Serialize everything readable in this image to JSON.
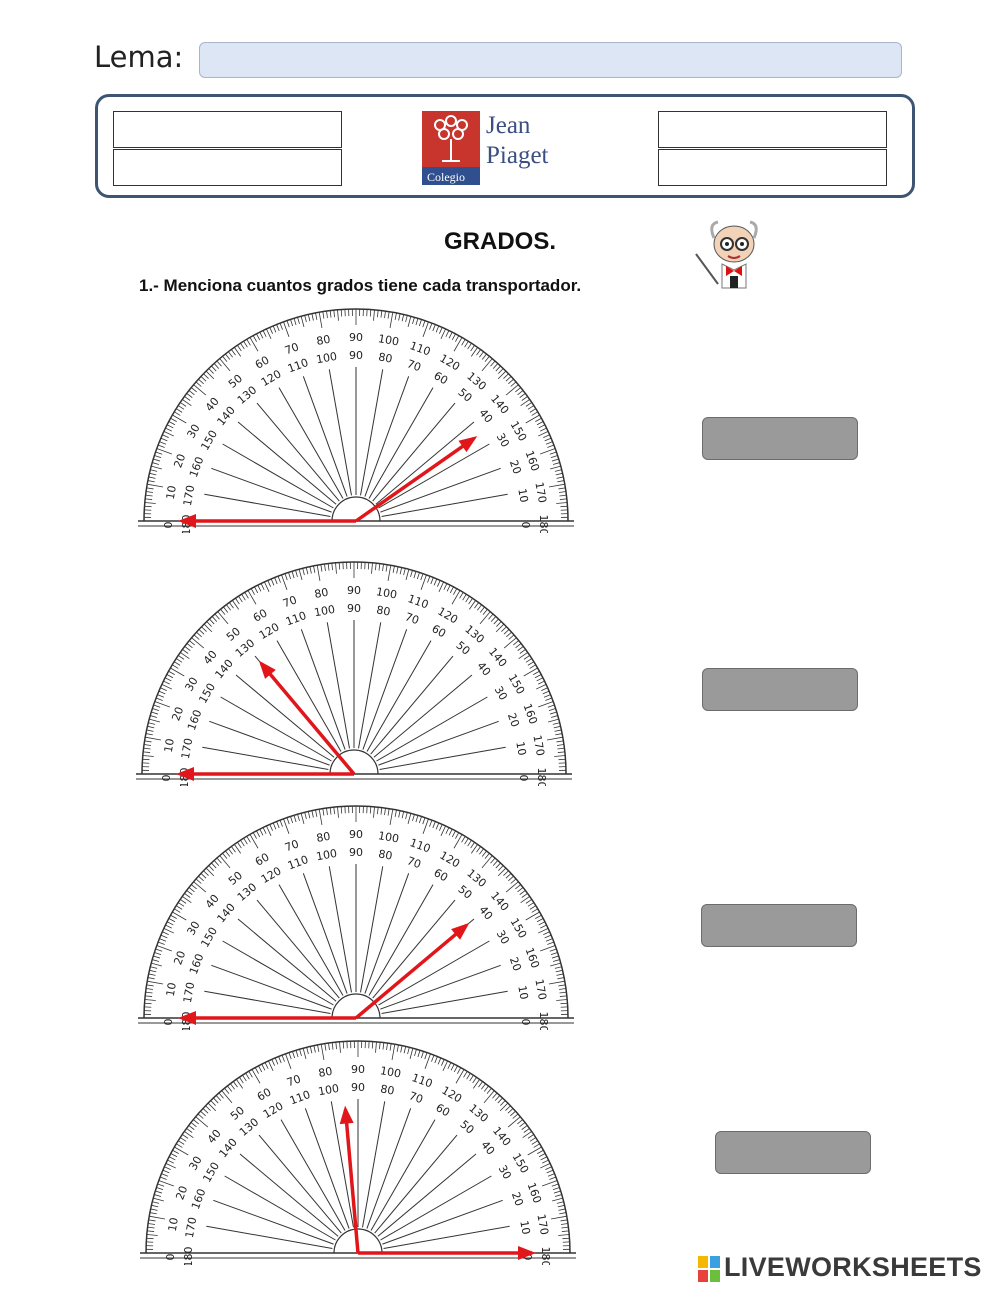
{
  "lema": {
    "label": "Lema:",
    "value": ""
  },
  "header": {
    "left_cells": [
      "",
      ""
    ],
    "right_cells": [
      "",
      ""
    ],
    "logo": {
      "line1": "Jean",
      "line2": "Piaget",
      "caption": "Colegio",
      "icon": "tree-logo-icon",
      "color": "#c0392b"
    }
  },
  "title": "GRADOS.",
  "instruction": "1.- Menciona cuantos grados tiene cada transportador.",
  "protractor_scale": {
    "outer_labels": [
      "0",
      "10",
      "20",
      "30",
      "40",
      "50",
      "60",
      "70",
      "80",
      "90",
      "100",
      "110",
      "120",
      "130",
      "140",
      "150",
      "160",
      "170",
      "180"
    ],
    "inner_labels": [
      "180",
      "170",
      "160",
      "150",
      "140",
      "130",
      "120",
      "110",
      "100",
      "90",
      "80",
      "70",
      "60",
      "50",
      "40",
      "30",
      "20",
      "10",
      "0"
    ]
  },
  "exercises": [
    {
      "id": 1,
      "ray_angles_deg": [
        180,
        35
      ],
      "answer": ""
    },
    {
      "id": 2,
      "ray_angles_deg": [
        180,
        130
      ],
      "answer": ""
    },
    {
      "id": 3,
      "ray_angles_deg": [
        180,
        40
      ],
      "answer": ""
    },
    {
      "id": 4,
      "ray_angles_deg": [
        0,
        95
      ],
      "answer": ""
    }
  ],
  "arrow_color": "#e0161b",
  "brand": {
    "text": "LIVEWORKSHEETS",
    "icon": "liveworksheets-logo-icon"
  }
}
